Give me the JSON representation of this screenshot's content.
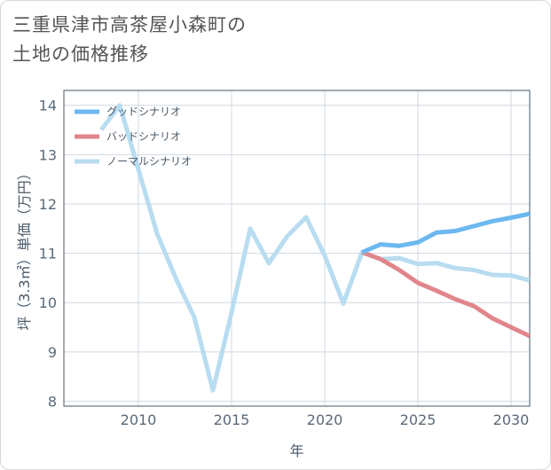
{
  "title": {
    "line1": "三重県津市高茶屋小森町の",
    "line2": "土地の価格推移"
  },
  "chart_data": {
    "type": "line",
    "xlabel": "年",
    "ylabel": "坪（3.3㎡）単価（万円）",
    "xlim": [
      2006,
      2031
    ],
    "ylim": [
      7.9,
      14.3
    ],
    "xticks": [
      2010,
      2015,
      2020,
      2025,
      2030
    ],
    "yticks": [
      8,
      9,
      10,
      11,
      12,
      13,
      14
    ],
    "grid": true,
    "legend_position": "top-left",
    "series": [
      {
        "name": "グッドシナリオ",
        "color": "#6cb8f0",
        "x": [
          2022,
          2023,
          2024,
          2025,
          2026,
          2027,
          2028,
          2029,
          2030,
          2031
        ],
        "values": [
          11.02,
          11.18,
          11.15,
          11.22,
          11.42,
          11.45,
          11.55,
          11.65,
          11.72,
          11.8
        ]
      },
      {
        "name": "バッドシナリオ",
        "color": "#e0868c",
        "x": [
          2022,
          2023,
          2024,
          2025,
          2026,
          2027,
          2028,
          2029,
          2030,
          2031
        ],
        "values": [
          11.02,
          10.88,
          10.66,
          10.4,
          10.24,
          10.07,
          9.93,
          9.68,
          9.5,
          9.32
        ]
      },
      {
        "name": "ノーマルシナリオ",
        "color": "#b8dcf0",
        "x": [
          2008,
          2009,
          2010,
          2011,
          2012,
          2013,
          2014,
          2015,
          2016,
          2017,
          2018,
          2019,
          2020,
          2021,
          2022,
          2023,
          2024,
          2025,
          2026,
          2027,
          2028,
          2029,
          2030,
          2031
        ],
        "values": [
          13.5,
          14.0,
          12.7,
          11.4,
          10.5,
          9.7,
          8.22,
          9.8,
          11.5,
          10.8,
          11.35,
          11.73,
          10.95,
          9.98,
          11.02,
          10.88,
          10.9,
          10.78,
          10.8,
          10.7,
          10.66,
          10.56,
          10.55,
          10.45
        ]
      }
    ]
  }
}
